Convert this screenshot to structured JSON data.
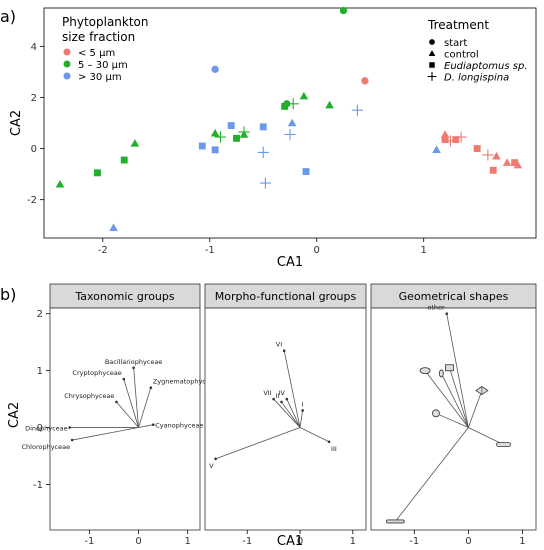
{
  "chart_data": [
    {
      "type": "scatter",
      "panel_label": "a)",
      "xlabel": "CA1",
      "ylabel": "CA2",
      "xlim": [
        -2.55,
        2.05
      ],
      "ylim": [
        -3.5,
        5.5
      ],
      "x_ticks": [
        -2,
        -1,
        0,
        1
      ],
      "y_ticks": [
        -2,
        0,
        2,
        4
      ],
      "legend_fraction": {
        "title_line1": "Phytoplankton",
        "title_line2": "size fraction",
        "entries": [
          {
            "label": "< 5 μm",
            "color": "#ef7a70"
          },
          {
            "label": "5 – 30 μm",
            "color": "#22b02b"
          },
          {
            "label": "> 30 μm",
            "color": "#6a98ec"
          }
        ]
      },
      "legend_treatment": {
        "title": "Treatment",
        "entries": [
          {
            "label": "start",
            "shape": "circle"
          },
          {
            "label": "control",
            "shape": "triangle"
          },
          {
            "label": "Eudiaptomus sp.",
            "shape": "square"
          },
          {
            "label": "D. longispina",
            "shape": "plus"
          }
        ]
      },
      "points": [
        {
          "x": 0.25,
          "y": 5.4,
          "shape": "circle",
          "color": "#22b02b"
        },
        {
          "x": -0.95,
          "y": 3.1,
          "shape": "circle",
          "color": "#6a98ec"
        },
        {
          "x": 0.45,
          "y": 2.65,
          "shape": "circle",
          "color": "#ef7a70"
        },
        {
          "x": -0.28,
          "y": 1.75,
          "shape": "circle",
          "color": "#22b02b"
        },
        {
          "x": -2.4,
          "y": -1.4,
          "shape": "triangle",
          "color": "#22b02b"
        },
        {
          "x": -1.7,
          "y": 0.2,
          "shape": "triangle",
          "color": "#22b02b"
        },
        {
          "x": -1.9,
          "y": -3.1,
          "shape": "triangle",
          "color": "#6a98ec"
        },
        {
          "x": -0.95,
          "y": 0.6,
          "shape": "triangle",
          "color": "#22b02b"
        },
        {
          "x": -0.68,
          "y": 0.55,
          "shape": "triangle",
          "color": "#22b02b"
        },
        {
          "x": -0.23,
          "y": 1.0,
          "shape": "triangle",
          "color": "#6a98ec"
        },
        {
          "x": -0.12,
          "y": 2.05,
          "shape": "triangle",
          "color": "#22b02b"
        },
        {
          "x": 0.12,
          "y": 1.7,
          "shape": "triangle",
          "color": "#22b02b"
        },
        {
          "x": 1.12,
          "y": -0.05,
          "shape": "triangle",
          "color": "#6a98ec"
        },
        {
          "x": 1.2,
          "y": 0.55,
          "shape": "triangle",
          "color": "#ef7a70"
        },
        {
          "x": 1.68,
          "y": -0.3,
          "shape": "triangle",
          "color": "#ef7a70"
        },
        {
          "x": 1.78,
          "y": -0.55,
          "shape": "triangle",
          "color": "#ef7a70"
        },
        {
          "x": 1.88,
          "y": -0.65,
          "shape": "triangle",
          "color": "#ef7a70"
        },
        {
          "x": -2.05,
          "y": -0.95,
          "shape": "square",
          "color": "#22b02b"
        },
        {
          "x": -1.8,
          "y": -0.45,
          "shape": "square",
          "color": "#22b02b"
        },
        {
          "x": -1.07,
          "y": 0.1,
          "shape": "square",
          "color": "#6a98ec"
        },
        {
          "x": -0.95,
          "y": -0.05,
          "shape": "square",
          "color": "#6a98ec"
        },
        {
          "x": -0.8,
          "y": 0.9,
          "shape": "square",
          "color": "#6a98ec"
        },
        {
          "x": -0.75,
          "y": 0.4,
          "shape": "square",
          "color": "#22b02b"
        },
        {
          "x": -0.5,
          "y": 0.85,
          "shape": "square",
          "color": "#6a98ec"
        },
        {
          "x": -0.3,
          "y": 1.65,
          "shape": "square",
          "color": "#22b02b"
        },
        {
          "x": -0.1,
          "y": -0.9,
          "shape": "square",
          "color": "#6a98ec"
        },
        {
          "x": 1.2,
          "y": 0.35,
          "shape": "square",
          "color": "#ef7a70"
        },
        {
          "x": 1.3,
          "y": 0.35,
          "shape": "square",
          "color": "#ef7a70"
        },
        {
          "x": 1.5,
          "y": 0.0,
          "shape": "square",
          "color": "#ef7a70"
        },
        {
          "x": 1.65,
          "y": -0.85,
          "shape": "square",
          "color": "#ef7a70"
        },
        {
          "x": 1.85,
          "y": -0.55,
          "shape": "square",
          "color": "#ef7a70"
        },
        {
          "x": -0.9,
          "y": 0.45,
          "shape": "plus",
          "color": "#22b02b"
        },
        {
          "x": -0.68,
          "y": 0.65,
          "shape": "plus",
          "color": "#22b02b"
        },
        {
          "x": -0.5,
          "y": -0.15,
          "shape": "plus",
          "color": "#6a98ec"
        },
        {
          "x": -0.48,
          "y": -1.35,
          "shape": "plus",
          "color": "#6a98ec"
        },
        {
          "x": -0.25,
          "y": 0.55,
          "shape": "plus",
          "color": "#6a98ec"
        },
        {
          "x": -0.22,
          "y": 1.75,
          "shape": "plus",
          "color": "#22b02b"
        },
        {
          "x": 0.38,
          "y": 1.5,
          "shape": "plus",
          "color": "#6a98ec"
        },
        {
          "x": 1.25,
          "y": 0.3,
          "shape": "plus",
          "color": "#ef7a70"
        },
        {
          "x": 1.35,
          "y": 0.45,
          "shape": "plus",
          "color": "#ef7a70"
        },
        {
          "x": 1.6,
          "y": -0.25,
          "shape": "plus",
          "color": "#ef7a70"
        }
      ]
    },
    {
      "type": "biplot",
      "panel_label": "b)",
      "xlabel": "CA1",
      "ylabel": "CA2",
      "xlim": [
        -1.8,
        1.25
      ],
      "ylim": [
        -1.8,
        2.1
      ],
      "x_ticks": [
        -1,
        0,
        1
      ],
      "y_ticks": [
        -1,
        0,
        1,
        2
      ],
      "facets": [
        {
          "title": "Taxonomic groups",
          "vectors": [
            {
              "label": "Bacillariophyceae",
              "x": -0.1,
              "y": 1.05
            },
            {
              "label": "Cryptophyceae",
              "x": -0.3,
              "y": 0.85
            },
            {
              "label": "Zygnematophyceae",
              "x": 0.25,
              "y": 0.7
            },
            {
              "label": "Chrysophyceae",
              "x": -0.45,
              "y": 0.45
            },
            {
              "label": "Cyanophyceae",
              "x": 0.3,
              "y": 0.05
            },
            {
              "label": "Dinophyceae",
              "x": -1.4,
              "y": 0.0
            },
            {
              "label": "Chlorophyceae",
              "x": -1.35,
              "y": -0.22
            }
          ]
        },
        {
          "title": "Morpho-functional groups",
          "vectors": [
            {
              "label": "VI",
              "x": -0.3,
              "y": 1.35
            },
            {
              "label": "VII",
              "x": -0.5,
              "y": 0.5
            },
            {
              "label": "II",
              "x": -0.35,
              "y": 0.45
            },
            {
              "label": "IV",
              "x": -0.25,
              "y": 0.5
            },
            {
              "label": "I",
              "x": 0.05,
              "y": 0.3
            },
            {
              "label": "III",
              "x": 0.55,
              "y": -0.25
            },
            {
              "label": "V",
              "x": -1.6,
              "y": -0.55
            }
          ]
        },
        {
          "title": "Geometrical shapes",
          "vectors": [
            {
              "label": "other",
              "x": -0.4,
              "y": 2.0
            },
            {
              "label": "",
              "x": -0.8,
              "y": 1.0,
              "glyph": "cylinder"
            },
            {
              "label": "",
              "x": -0.5,
              "y": 0.95,
              "glyph": "cone"
            },
            {
              "label": "",
              "x": -0.35,
              "y": 1.05,
              "glyph": "box"
            },
            {
              "label": "",
              "x": 0.25,
              "y": 0.65,
              "glyph": "diamond"
            },
            {
              "label": "",
              "x": -0.6,
              "y": 0.25,
              "glyph": "sphere"
            },
            {
              "label": "",
              "x": 0.65,
              "y": -0.3,
              "glyph": "rod"
            },
            {
              "label": "",
              "x": -1.35,
              "y": -1.65,
              "glyph": "needle"
            }
          ]
        }
      ]
    }
  ]
}
